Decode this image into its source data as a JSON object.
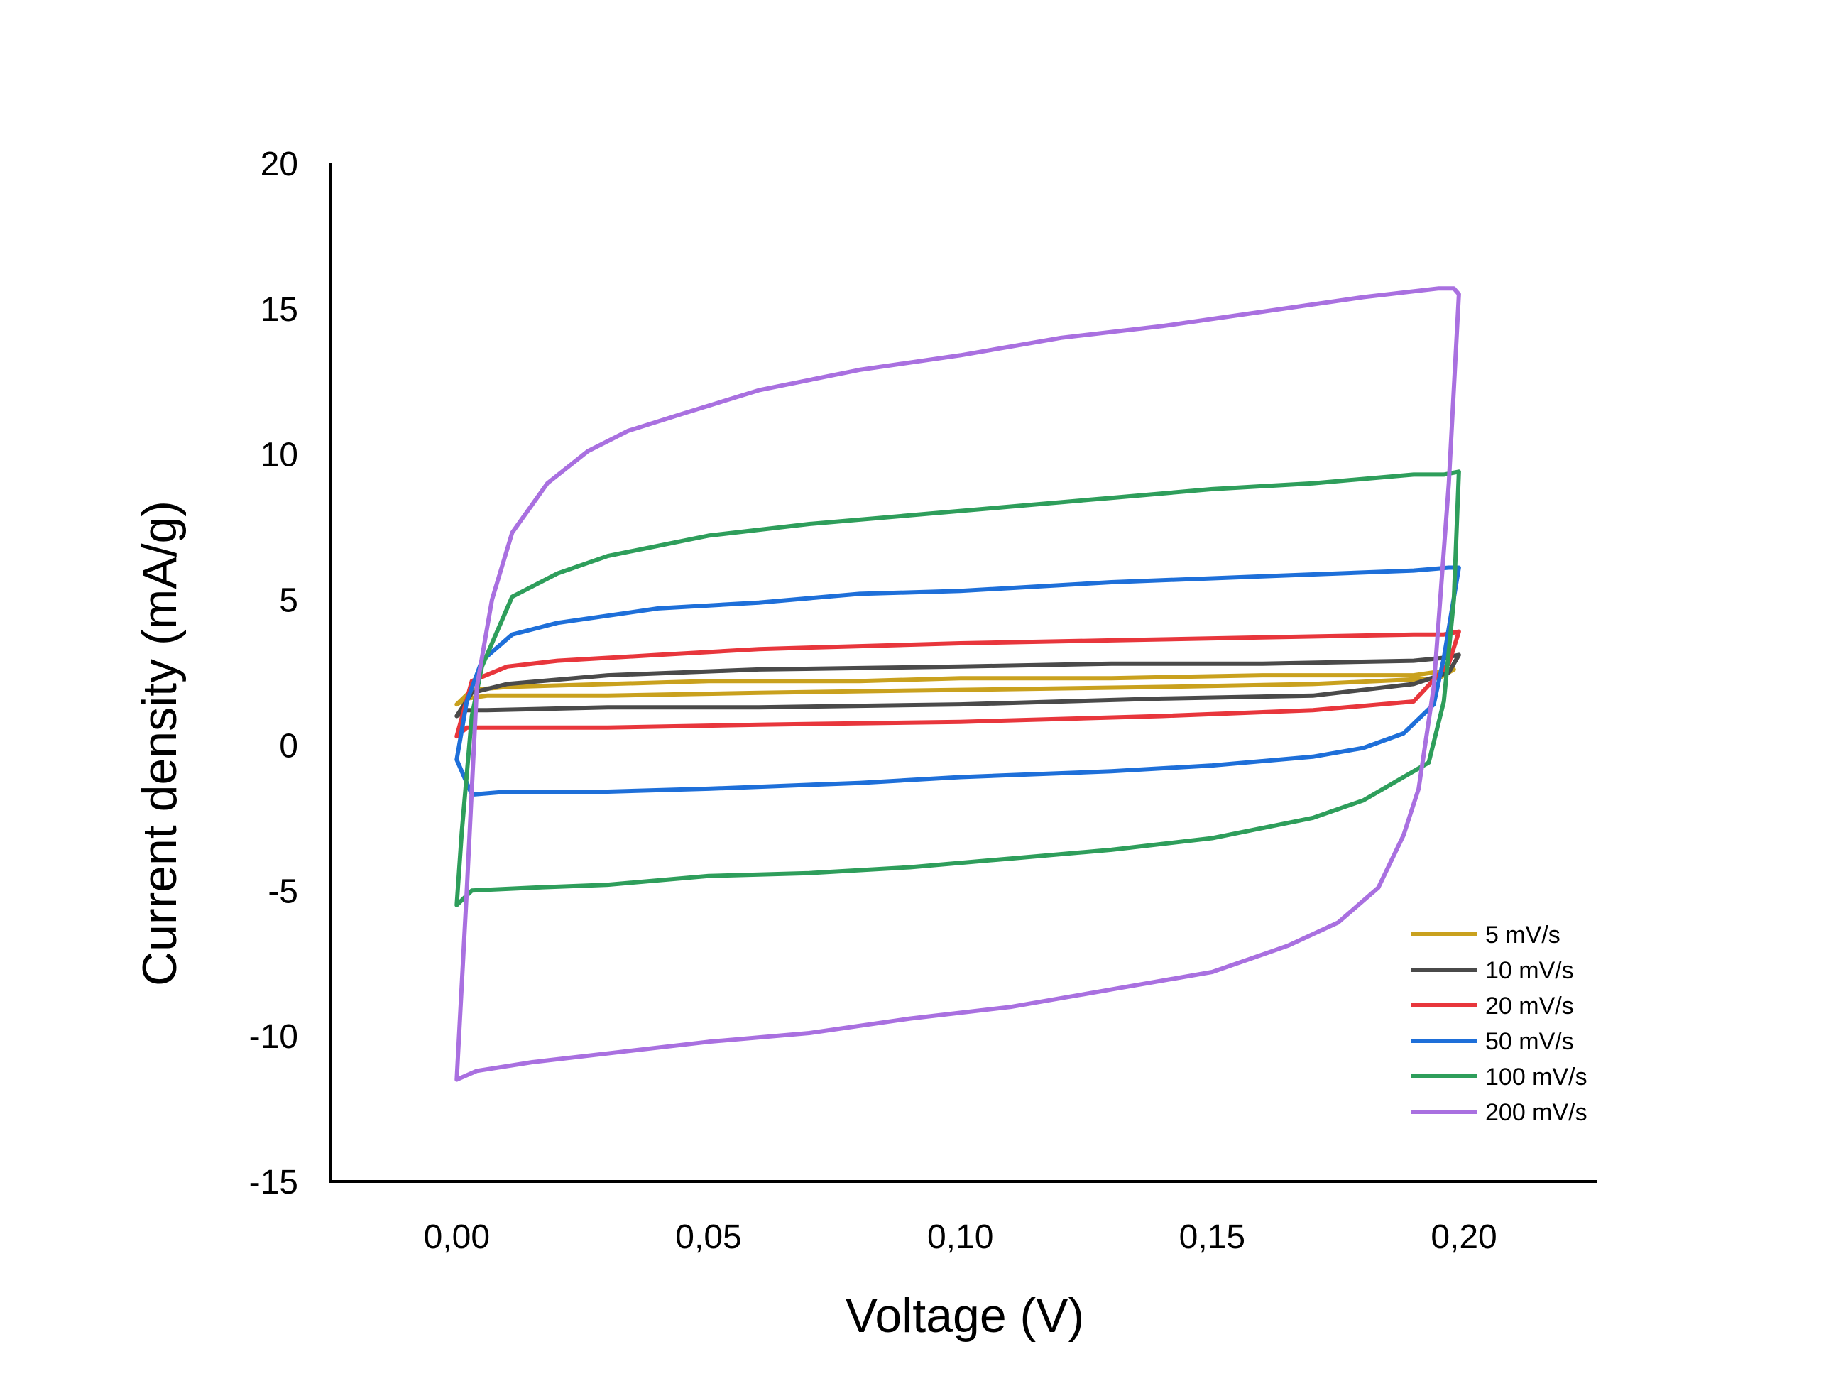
{
  "chart_data": {
    "type": "line",
    "xlabel": "Voltage (V)",
    "ylabel": "Current density (mA/g)",
    "xlim": [
      -0.025,
      0.2265
    ],
    "ylim": [
      -15,
      20
    ],
    "xticks": [
      0.0,
      0.05,
      0.1,
      0.15,
      0.2
    ],
    "xtick_labels": [
      "0,00",
      "0,05",
      "0,10",
      "0,15",
      "0,20"
    ],
    "yticks": [
      20,
      15,
      10,
      5,
      0,
      -5,
      -10,
      -15
    ],
    "ytick_labels": [
      "20",
      "15",
      "10",
      "5",
      "0",
      "-5",
      "-10",
      "-15"
    ],
    "grid": false,
    "legend_position": "bottom-right",
    "series": [
      {
        "name": "5 mV/s",
        "color": "#C9A11E",
        "points": [
          [
            0.0,
            1.4
          ],
          [
            0.003,
            1.9
          ],
          [
            0.01,
            2.0
          ],
          [
            0.03,
            2.1
          ],
          [
            0.05,
            2.2
          ],
          [
            0.08,
            2.2
          ],
          [
            0.1,
            2.3
          ],
          [
            0.13,
            2.3
          ],
          [
            0.16,
            2.4
          ],
          [
            0.19,
            2.4
          ],
          [
            0.198,
            2.6
          ],
          [
            0.195,
            2.3
          ],
          [
            0.17,
            2.1
          ],
          [
            0.14,
            2.0
          ],
          [
            0.1,
            1.9
          ],
          [
            0.06,
            1.8
          ],
          [
            0.03,
            1.7
          ],
          [
            0.006,
            1.7
          ],
          [
            0.002,
            1.6
          ],
          [
            0.0,
            1.4
          ]
        ]
      },
      {
        "name": "10 mV/s",
        "color": "#4A4A4A",
        "points": [
          [
            0.0,
            1.0
          ],
          [
            0.003,
            1.8
          ],
          [
            0.01,
            2.1
          ],
          [
            0.03,
            2.4
          ],
          [
            0.06,
            2.6
          ],
          [
            0.1,
            2.7
          ],
          [
            0.13,
            2.8
          ],
          [
            0.16,
            2.8
          ],
          [
            0.19,
            2.9
          ],
          [
            0.196,
            3.0
          ],
          [
            0.199,
            3.1
          ],
          [
            0.197,
            2.5
          ],
          [
            0.19,
            2.1
          ],
          [
            0.17,
            1.7
          ],
          [
            0.14,
            1.6
          ],
          [
            0.1,
            1.4
          ],
          [
            0.06,
            1.3
          ],
          [
            0.03,
            1.3
          ],
          [
            0.006,
            1.2
          ],
          [
            0.002,
            1.2
          ],
          [
            0.0,
            1.0
          ]
        ]
      },
      {
        "name": "20 mV/s",
        "color": "#E8363C",
        "points": [
          [
            0.0,
            0.3
          ],
          [
            0.003,
            2.2
          ],
          [
            0.01,
            2.7
          ],
          [
            0.02,
            2.9
          ],
          [
            0.04,
            3.1
          ],
          [
            0.06,
            3.3
          ],
          [
            0.08,
            3.4
          ],
          [
            0.1,
            3.5
          ],
          [
            0.13,
            3.6
          ],
          [
            0.16,
            3.7
          ],
          [
            0.19,
            3.8
          ],
          [
            0.196,
            3.8
          ],
          [
            0.199,
            3.9
          ],
          [
            0.197,
            2.8
          ],
          [
            0.19,
            1.5
          ],
          [
            0.17,
            1.2
          ],
          [
            0.14,
            1.0
          ],
          [
            0.1,
            0.8
          ],
          [
            0.06,
            0.7
          ],
          [
            0.03,
            0.6
          ],
          [
            0.006,
            0.6
          ],
          [
            0.002,
            0.6
          ],
          [
            0.0,
            0.3
          ]
        ]
      },
      {
        "name": "50 mV/s",
        "color": "#1E6FD9",
        "points": [
          [
            0.0,
            -0.5
          ],
          [
            0.002,
            1.5
          ],
          [
            0.005,
            2.9
          ],
          [
            0.011,
            3.8
          ],
          [
            0.02,
            4.2
          ],
          [
            0.04,
            4.7
          ],
          [
            0.06,
            4.9
          ],
          [
            0.08,
            5.2
          ],
          [
            0.1,
            5.3
          ],
          [
            0.13,
            5.6
          ],
          [
            0.16,
            5.8
          ],
          [
            0.19,
            6.0
          ],
          [
            0.197,
            6.1
          ],
          [
            0.199,
            6.1
          ],
          [
            0.196,
            3.0
          ],
          [
            0.194,
            1.4
          ],
          [
            0.188,
            0.4
          ],
          [
            0.18,
            -0.1
          ],
          [
            0.17,
            -0.4
          ],
          [
            0.15,
            -0.7
          ],
          [
            0.13,
            -0.9
          ],
          [
            0.1,
            -1.1
          ],
          [
            0.08,
            -1.3
          ],
          [
            0.05,
            -1.5
          ],
          [
            0.03,
            -1.6
          ],
          [
            0.01,
            -1.6
          ],
          [
            0.003,
            -1.7
          ],
          [
            0.0,
            -0.5
          ]
        ]
      },
      {
        "name": "100 mV/s",
        "color": "#2E9E5B",
        "points": [
          [
            0.0,
            -5.5
          ],
          [
            0.001,
            -3.0
          ],
          [
            0.003,
            1.0
          ],
          [
            0.005,
            2.7
          ],
          [
            0.011,
            5.1
          ],
          [
            0.02,
            5.9
          ],
          [
            0.03,
            6.5
          ],
          [
            0.05,
            7.2
          ],
          [
            0.07,
            7.6
          ],
          [
            0.09,
            7.9
          ],
          [
            0.11,
            8.2
          ],
          [
            0.13,
            8.5
          ],
          [
            0.15,
            8.8
          ],
          [
            0.17,
            9.0
          ],
          [
            0.19,
            9.3
          ],
          [
            0.196,
            9.3
          ],
          [
            0.199,
            9.4
          ],
          [
            0.198,
            5.0
          ],
          [
            0.196,
            1.5
          ],
          [
            0.193,
            -0.6
          ],
          [
            0.188,
            -1.1
          ],
          [
            0.18,
            -1.9
          ],
          [
            0.17,
            -2.5
          ],
          [
            0.15,
            -3.2
          ],
          [
            0.13,
            -3.6
          ],
          [
            0.11,
            -3.9
          ],
          [
            0.09,
            -4.2
          ],
          [
            0.07,
            -4.4
          ],
          [
            0.05,
            -4.5
          ],
          [
            0.03,
            -4.8
          ],
          [
            0.015,
            -4.9
          ],
          [
            0.003,
            -5.0
          ],
          [
            0.0,
            -5.5
          ]
        ]
      },
      {
        "name": "200 mV/s",
        "color": "#A970E0",
        "points": [
          [
            0.0,
            -11.5
          ],
          [
            0.002,
            -5.0
          ],
          [
            0.004,
            2.0
          ],
          [
            0.007,
            5.0
          ],
          [
            0.011,
            7.3
          ],
          [
            0.018,
            9.0
          ],
          [
            0.026,
            10.1
          ],
          [
            0.034,
            10.8
          ],
          [
            0.045,
            11.4
          ],
          [
            0.06,
            12.2
          ],
          [
            0.08,
            12.9
          ],
          [
            0.1,
            13.4
          ],
          [
            0.12,
            14.0
          ],
          [
            0.14,
            14.4
          ],
          [
            0.16,
            14.9
          ],
          [
            0.18,
            15.4
          ],
          [
            0.195,
            15.7
          ],
          [
            0.198,
            15.7
          ],
          [
            0.199,
            15.5
          ],
          [
            0.197,
            9.0
          ],
          [
            0.194,
            2.0
          ],
          [
            0.191,
            -1.5
          ],
          [
            0.188,
            -3.1
          ],
          [
            0.183,
            -4.9
          ],
          [
            0.175,
            -6.1
          ],
          [
            0.165,
            -6.9
          ],
          [
            0.15,
            -7.8
          ],
          [
            0.13,
            -8.4
          ],
          [
            0.11,
            -9.0
          ],
          [
            0.09,
            -9.4
          ],
          [
            0.07,
            -9.9
          ],
          [
            0.05,
            -10.2
          ],
          [
            0.03,
            -10.6
          ],
          [
            0.015,
            -10.9
          ],
          [
            0.004,
            -11.2
          ],
          [
            0.0,
            -11.5
          ]
        ]
      }
    ]
  }
}
